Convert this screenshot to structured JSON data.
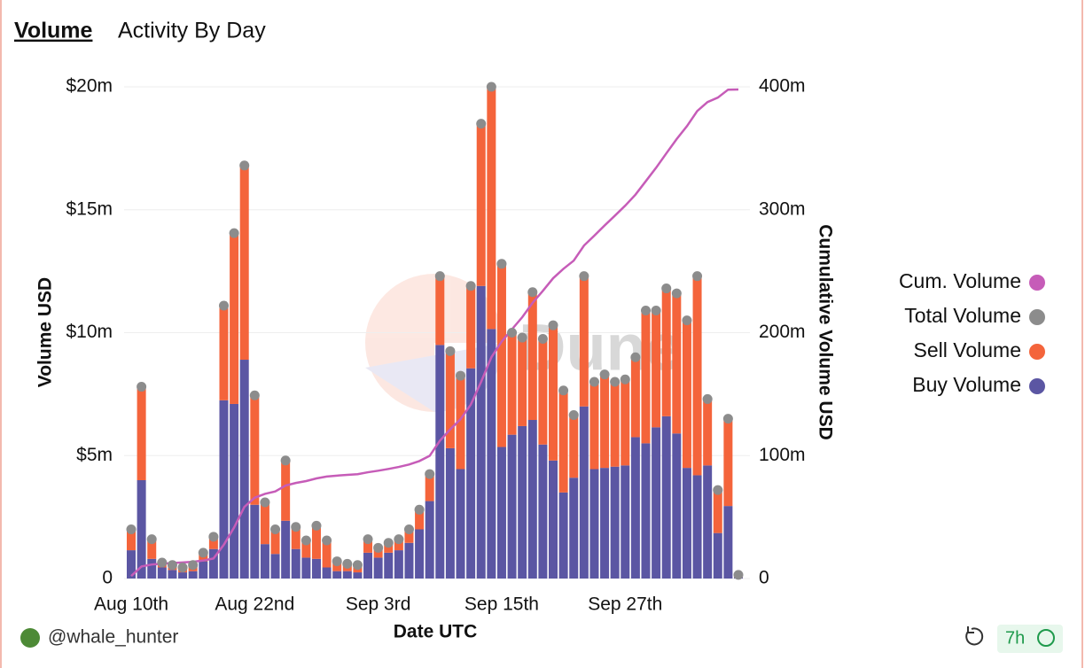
{
  "tabs": [
    "Volume",
    "Activity By Day"
  ],
  "user": "@whale_hunter",
  "age": "7h",
  "watermark": "Dune",
  "chart_data": {
    "type": "bar",
    "stacked": true,
    "xlabel": "Date UTC",
    "ylabel": "Volume USD",
    "y2label": "Cumulative Volume USD",
    "categories": [
      "Aug 10th",
      null,
      null,
      null,
      null,
      null,
      null,
      null,
      null,
      null,
      null,
      null,
      "Aug 22nd",
      null,
      null,
      null,
      null,
      null,
      null,
      null,
      null,
      null,
      null,
      null,
      "Sep 3rd",
      null,
      null,
      null,
      null,
      null,
      null,
      null,
      null,
      null,
      null,
      null,
      "Sep 15th",
      null,
      null,
      null,
      null,
      null,
      null,
      null,
      null,
      null,
      null,
      null,
      "Sep 27th",
      null,
      null,
      null,
      null,
      null,
      null,
      null,
      null,
      null,
      null,
      null
    ],
    "series": [
      {
        "name": "Cum. Volume",
        "color": "#c65cb8",
        "kind": "line",
        "axis": "y2",
        "values": [
          2.0,
          9.8,
          11.4,
          12.05,
          12.6,
          13.05,
          13.6,
          14.65,
          16.35,
          27.45,
          41.5,
          58.3,
          65.75,
          68.85,
          70.85,
          75.65,
          77.75,
          79.3,
          81.45,
          83.0,
          83.7,
          84.3,
          84.85,
          86.45,
          87.7,
          89.15,
          90.75,
          92.75,
          95.55,
          99.8,
          112.1,
          121.35,
          129.6,
          141.5,
          160.0,
          180.0,
          192.8,
          202.8,
          212.6,
          224.25,
          234.0,
          244.3,
          251.95,
          258.6,
          270.9,
          278.9,
          287.2,
          295.2,
          303.3,
          312.3,
          323.2,
          334.1,
          345.9,
          357.5,
          368.0,
          380.3,
          387.6,
          391.2,
          397.7,
          397.85
        ]
      },
      {
        "name": "Total Volume",
        "color": "#8c8c8c",
        "kind": "dot",
        "values": [
          2.0,
          7.8,
          1.6,
          0.65,
          0.55,
          0.45,
          0.55,
          1.05,
          1.7,
          11.1,
          14.05,
          16.8,
          7.45,
          3.1,
          2.0,
          4.8,
          2.1,
          1.55,
          2.15,
          1.55,
          0.7,
          0.6,
          0.55,
          1.6,
          1.25,
          1.45,
          1.6,
          2.0,
          2.8,
          4.25,
          12.3,
          9.25,
          8.25,
          11.9,
          18.5,
          20.0,
          12.8,
          10.0,
          9.8,
          11.65,
          9.75,
          10.3,
          7.65,
          6.65,
          12.3,
          8.0,
          8.3,
          8.0,
          8.1,
          9.0,
          10.9,
          10.9,
          11.8,
          11.6,
          10.5,
          12.3,
          7.3,
          3.6,
          6.5,
          0.15
        ]
      },
      {
        "name": "Sell Volume",
        "color": "#f4643b",
        "kind": "bar",
        "values": [
          0.85,
          3.8,
          0.8,
          0.2,
          0.2,
          0.2,
          0.25,
          0.35,
          0.5,
          3.85,
          6.95,
          7.9,
          4.45,
          1.7,
          1.0,
          2.45,
          0.9,
          0.7,
          1.35,
          1.1,
          0.4,
          0.3,
          0.3,
          0.55,
          0.4,
          0.4,
          0.45,
          0.55,
          0.8,
          1.1,
          2.8,
          3.95,
          3.8,
          3.35,
          6.6,
          9.85,
          7.45,
          4.15,
          3.6,
          5.2,
          4.3,
          5.5,
          4.15,
          2.55,
          5.3,
          3.55,
          3.8,
          3.45,
          3.5,
          3.25,
          5.4,
          4.75,
          5.2,
          5.7,
          6.0,
          8.1,
          2.7,
          1.75,
          3.55,
          0.1
        ]
      },
      {
        "name": "Buy Volume",
        "color": "#5b56a3",
        "kind": "bar",
        "values": [
          1.15,
          4.0,
          0.8,
          0.45,
          0.35,
          0.25,
          0.3,
          0.7,
          1.2,
          7.25,
          7.1,
          8.9,
          3.0,
          1.4,
          1.0,
          2.35,
          1.2,
          0.85,
          0.8,
          0.45,
          0.3,
          0.3,
          0.25,
          1.05,
          0.85,
          1.05,
          1.15,
          1.45,
          2.0,
          3.15,
          9.5,
          5.3,
          4.45,
          8.55,
          11.9,
          10.15,
          5.35,
          5.85,
          6.2,
          6.45,
          5.45,
          4.8,
          3.5,
          4.1,
          7.0,
          4.45,
          4.5,
          4.55,
          4.6,
          5.75,
          5.5,
          6.15,
          6.6,
          5.9,
          4.5,
          4.2,
          4.6,
          1.85,
          2.95,
          0.05
        ]
      }
    ],
    "ylim": [
      0,
      20
    ],
    "yticks": [
      0,
      {
        "value": 5,
        "label": "$5m"
      },
      {
        "value": 10,
        "label": "$10m"
      },
      {
        "value": 15,
        "label": "$15m"
      },
      {
        "value": 20,
        "label": "$20m"
      }
    ],
    "y2lim": [
      0,
      400
    ],
    "y2ticks": [
      0,
      {
        "value": 100,
        "label": "100m"
      },
      {
        "value": 200,
        "label": "200m"
      },
      {
        "value": 300,
        "label": "300m"
      },
      {
        "value": 400,
        "label": "400m"
      }
    ],
    "grid": true,
    "legend": "right"
  }
}
